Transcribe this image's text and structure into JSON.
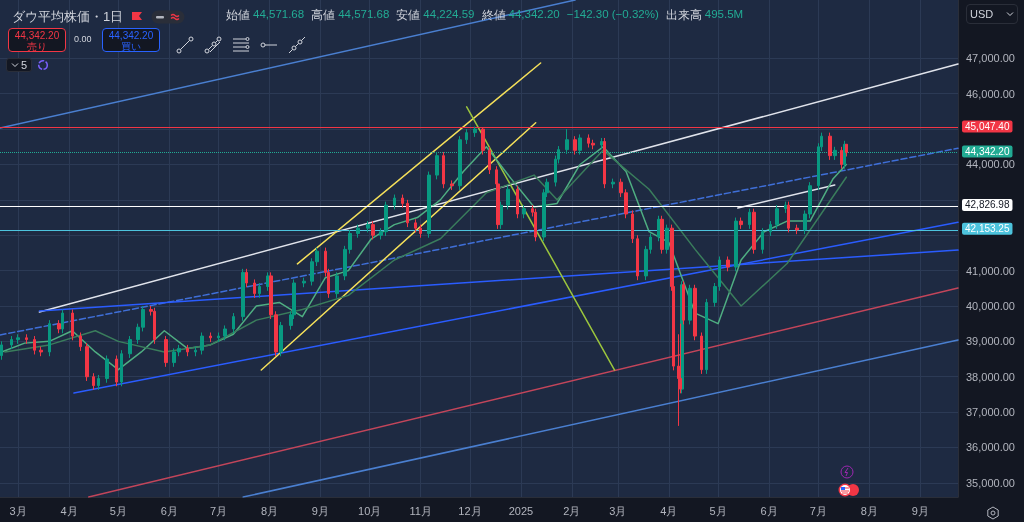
{
  "chart_data": {
    "type": "candlestick",
    "title": "ダウ平均株価・1日",
    "annotations": [
      "始値",
      "44,571.68",
      "高値",
      "44,571.68",
      "安値",
      "44,224.59",
      "終値",
      "44,342.20",
      "−142.30 (−0.32%)",
      "出来高",
      "495.5M",
      "44,342.20",
      "売り",
      "0.00",
      "44,342.20",
      "買い",
      "5",
      "USD"
    ],
    "xlim": [
      "2024-02-19",
      "2025-09-24"
    ],
    "xticks": [
      {
        "value": "2024-03-01",
        "label": "3月"
      },
      {
        "value": "2024-04-01",
        "label": "4月"
      },
      {
        "value": "2024-05-01",
        "label": "5月"
      },
      {
        "value": "2024-06-01",
        "label": "6月"
      },
      {
        "value": "2024-07-01",
        "label": "7月"
      },
      {
        "value": "2024-08-01",
        "label": "8月"
      },
      {
        "value": "2024-09-01",
        "label": "9月"
      },
      {
        "value": "2024-10-01",
        "label": "10月"
      },
      {
        "value": "2024-11-01",
        "label": "11月"
      },
      {
        "value": "2024-12-01",
        "label": "12月"
      },
      {
        "value": "2025-01-01",
        "label": "2025"
      },
      {
        "value": "2025-02-01",
        "label": "2月"
      },
      {
        "value": "2025-03-01",
        "label": "3月"
      },
      {
        "value": "2025-04-01",
        "label": "4月"
      },
      {
        "value": "2025-05-01",
        "label": "5月"
      },
      {
        "value": "2025-06-01",
        "label": "6月"
      },
      {
        "value": "2025-07-01",
        "label": "7月"
      },
      {
        "value": "2025-08-01",
        "label": "8月"
      },
      {
        "value": "2025-09-01",
        "label": "9月"
      }
    ],
    "ylim": [
      34600,
      48650
    ],
    "yticks": [
      {
        "value": 35000,
        "label": "35,000.00"
      },
      {
        "value": 36000,
        "label": "36,000.00"
      },
      {
        "value": 37000,
        "label": "37,000.00"
      },
      {
        "value": 38000,
        "label": "38,000.00"
      },
      {
        "value": 39000,
        "label": "39,000.00"
      },
      {
        "value": 40000,
        "label": "40,000.00"
      },
      {
        "value": 41000,
        "label": "41,000.00"
      },
      {
        "value": 42000,
        "label": null
      },
      {
        "value": 43000,
        "label": null
      },
      {
        "value": 44000,
        "label": "44,000.00"
      },
      {
        "value": 45000,
        "label": null
      },
      {
        "value": 46000,
        "label": "46,000.00"
      },
      {
        "value": 47000,
        "label": "47,000.00"
      }
    ],
    "grid": true,
    "ref_lines": [
      {
        "axis": "y",
        "value": 45047.4,
        "label": "45,047.40",
        "color": "#f23645",
        "line_style": "solid"
      },
      {
        "axis": "y",
        "value": 44342.2,
        "label": "44,342.20",
        "color": "#22ab94",
        "line_style": "dotted"
      },
      {
        "axis": "y",
        "value": 42826.98,
        "label": "42,826.98",
        "color": "#ffffff",
        "line_style": "solid"
      },
      {
        "axis": "y",
        "value": 42153.25,
        "label": "42,153.25",
        "color": "#4dc3dd",
        "line_style": "solid"
      }
    ],
    "series": [
      {
        "type": "line",
        "color": "#4a7fd0",
        "line_style": "solid",
        "x": [
          "2024-02-19",
          "2025-02-03"
        ],
        "values": [
          45030,
          48650
        ]
      },
      {
        "type": "line",
        "color": "#4a7fd0",
        "line_style": "solid",
        "x": [
          "2024-07-16",
          "2025-09-24"
        ],
        "values": [
          34600,
          39040
        ]
      },
      {
        "type": "line",
        "color": "#c2455a",
        "line_style": "solid",
        "x": [
          "2024-04-13",
          "2025-09-24"
        ],
        "values": [
          34600,
          40510
        ]
      },
      {
        "type": "line",
        "color": "#e0e3eb",
        "line_style": "solid",
        "x": [
          "2024-03-14",
          "2025-09-24"
        ],
        "values": [
          39830,
          46840
        ]
      },
      {
        "type": "line",
        "color": "#3f6fd8",
        "line_style": "dashed",
        "x": [
          "2024-02-19",
          "2025-09-24"
        ],
        "values": [
          39180,
          44460
        ]
      },
      {
        "type": "line",
        "color": "#2a5cff",
        "line_style": "solid",
        "x": [
          "2024-04-04",
          "2025-09-24"
        ],
        "values": [
          37540,
          42370
        ]
      },
      {
        "type": "line",
        "color": "#2a5cff",
        "line_style": "solid",
        "x": [
          "2024-03-14",
          "2025-09-24"
        ],
        "values": [
          39860,
          41580
        ]
      },
      {
        "type": "line",
        "color": "#f5e05a",
        "line_style": "solid",
        "x": [
          "2024-08-18",
          "2025-01-13"
        ],
        "values": [
          41190,
          46870
        ]
      },
      {
        "type": "line",
        "color": "#f5e05a",
        "line_style": "solid",
        "x": [
          "2024-07-27",
          "2025-01-10"
        ],
        "values": [
          38190,
          45180
        ]
      },
      {
        "type": "line",
        "color": "#9bc53d",
        "line_style": "solid",
        "x": [
          "2024-11-29",
          "2025-02-27"
        ],
        "values": [
          45630,
          38190
        ]
      },
      {
        "type": "line",
        "color": "#e0e3eb",
        "line_style": "solid",
        "x": [
          "2025-05-13",
          "2025-07-11"
        ],
        "values": [
          42770,
          43420
        ]
      },
      {
        "type": "line",
        "color": "#4fae82",
        "line_style": "solid",
        "x": [
          "2024-02-20",
          "2024-03-05",
          "2024-03-20",
          "2024-04-03",
          "2024-04-17",
          "2024-05-01",
          "2024-05-15",
          "2024-05-29",
          "2024-06-12",
          "2024-06-26",
          "2024-07-10",
          "2024-07-24",
          "2024-08-07",
          "2024-08-21",
          "2024-09-04",
          "2024-09-18",
          "2024-10-02",
          "2024-10-16",
          "2024-10-30",
          "2024-11-13",
          "2024-11-27",
          "2024-12-11",
          "2024-12-26",
          "2025-01-09",
          "2025-01-23",
          "2025-02-06",
          "2025-02-20",
          "2025-03-06",
          "2025-03-20",
          "2025-04-01",
          "2025-04-17",
          "2025-05-01",
          "2025-05-15",
          "2025-05-29",
          "2025-06-12",
          "2025-06-26",
          "2025-07-10",
          "2025-07-18"
        ],
        "values": [
          38700,
          38950,
          39000,
          39300,
          38700,
          38200,
          38700,
          39300,
          38800,
          38900,
          39200,
          40000,
          40100,
          39700,
          40800,
          41000,
          41900,
          42300,
          42500,
          43000,
          43800,
          44500,
          43600,
          42800,
          42900,
          44000,
          44500,
          43800,
          42100,
          41800,
          39800,
          39500,
          41300,
          42100,
          42400,
          42400,
          43600,
          44000
        ]
      },
      {
        "type": "line",
        "color": "#3a7d5c",
        "line_style": "solid",
        "x": [
          "2024-02-22",
          "2024-03-20",
          "2024-04-17",
          "2024-05-01",
          "2024-05-29",
          "2024-06-26",
          "2024-07-24",
          "2024-08-21",
          "2024-09-18",
          "2024-10-16",
          "2024-11-13",
          "2024-12-11",
          "2025-01-09",
          "2025-01-23",
          "2025-02-20",
          "2025-03-20",
          "2025-04-17",
          "2025-05-15",
          "2025-06-12",
          "2025-07-18"
        ],
        "values": [
          38700,
          38900,
          39300,
          39000,
          38700,
          38900,
          39600,
          39900,
          40300,
          41300,
          41900,
          43200,
          43700,
          43000,
          44400,
          43300,
          41600,
          40000,
          41200,
          43640
        ]
      },
      {
        "color": "#089981",
        "x": [
          "2024-02-20",
          "2024-02-26",
          "2024-03-01",
          "2024-03-20",
          "2024-03-28",
          "2024-04-19",
          "2024-04-24",
          "2024-05-03",
          "2024-05-08",
          "2024-05-13",
          "2024-05-16",
          "2024-06-04",
          "2024-06-07",
          "2024-06-17",
          "2024-06-21",
          "2024-07-01",
          "2024-07-05",
          "2024-07-10",
          "2024-07-16",
          "2024-07-26",
          "2024-07-31",
          "2024-08-08",
          "2024-08-14",
          "2024-08-16",
          "2024-08-22",
          "2024-08-27",
          "2024-08-30",
          "2024-09-11",
          "2024-09-16",
          "2024-09-19",
          "2024-09-24",
          "2024-09-30",
          "2024-10-08",
          "2024-10-11",
          "2024-10-16",
          "2024-11-06",
          "2024-11-11",
          "2024-11-25",
          "2024-11-29",
          "2024-12-04",
          "2024-12-20",
          "2024-12-24",
          "2025-01-03",
          "2025-01-15",
          "2025-01-17",
          "2025-01-22",
          "2025-01-24",
          "2025-01-29",
          "2025-02-06",
          "2025-02-19",
          "2025-02-26",
          "2025-03-18",
          "2025-03-21",
          "2025-03-26",
          "2025-03-31",
          "2025-04-09",
          "2025-04-14",
          "2025-04-24",
          "2025-04-29",
          "2025-05-02",
          "2025-05-12",
          "2025-05-20",
          "2025-05-28",
          "2025-06-02",
          "2025-06-06",
          "2025-06-11",
          "2025-06-23",
          "2025-06-26",
          "2025-07-01",
          "2025-07-03",
          "2025-07-11",
          "2025-07-17"
        ],
        "ohlc": [
          [
            38600,
            39000,
            38480,
            38900
          ],
          [
            38900,
            39150,
            38780,
            39050
          ],
          [
            39050,
            39200,
            38930,
            39100
          ],
          [
            38700,
            39600,
            38580,
            39500
          ],
          [
            39350,
            39900,
            39230,
            39800
          ],
          [
            37750,
            38050,
            37630,
            37950
          ],
          [
            37950,
            38600,
            37830,
            38500
          ],
          [
            37850,
            38750,
            37730,
            38650
          ],
          [
            38650,
            39150,
            38530,
            39050
          ],
          [
            39050,
            39500,
            38930,
            39400
          ],
          [
            39400,
            40000,
            39280,
            39900
          ],
          [
            38400,
            38800,
            38280,
            38700
          ],
          [
            38700,
            38900,
            38580,
            38800
          ],
          [
            38700,
            38850,
            38580,
            38750
          ],
          [
            38750,
            39250,
            38630,
            39150
          ],
          [
            39100,
            39250,
            38980,
            39150
          ],
          [
            39150,
            39450,
            39030,
            39350
          ],
          [
            39350,
            39800,
            39230,
            39700
          ],
          [
            39700,
            41050,
            39580,
            40950
          ],
          [
            40350,
            40650,
            40230,
            40550
          ],
          [
            40550,
            40950,
            40430,
            40850
          ],
          [
            38700,
            39550,
            38580,
            39450
          ],
          [
            39450,
            39850,
            39330,
            39750
          ],
          [
            39750,
            40750,
            39630,
            40650
          ],
          [
            40650,
            40800,
            40530,
            40700
          ],
          [
            40700,
            41350,
            40580,
            41250
          ],
          [
            41250,
            41650,
            41130,
            41550
          ],
          [
            40350,
            40950,
            40230,
            40850
          ],
          [
            40850,
            41700,
            40730,
            41600
          ],
          [
            41600,
            42150,
            41480,
            42050
          ],
          [
            42050,
            42300,
            41930,
            42200
          ],
          [
            42200,
            42400,
            42080,
            42300
          ],
          [
            42000,
            42200,
            41880,
            42100
          ],
          [
            42100,
            42950,
            41980,
            42850
          ],
          [
            42850,
            43150,
            42730,
            43050
          ],
          [
            42050,
            43800,
            41930,
            43700
          ],
          [
            43700,
            44350,
            43580,
            44250
          ],
          [
            43400,
            44800,
            43280,
            44700
          ],
          [
            44700,
            45000,
            44580,
            44900
          ],
          [
            44900,
            45070,
            44780,
            45000
          ],
          [
            42300,
            42950,
            42180,
            42850
          ],
          [
            42850,
            43400,
            42730,
            43300
          ],
          [
            42600,
            42850,
            42480,
            42750
          ],
          [
            41950,
            43300,
            41830,
            43200
          ],
          [
            43200,
            43600,
            43080,
            43500
          ],
          [
            43500,
            44250,
            43380,
            44150
          ],
          [
            44150,
            44520,
            44030,
            44420
          ],
          [
            44420,
            45000,
            44300,
            44700
          ],
          [
            44400,
            44850,
            44280,
            44750
          ],
          [
            44550,
            44750,
            44430,
            44650
          ],
          [
            43450,
            43600,
            43330,
            43500
          ],
          [
            40850,
            41700,
            40730,
            41600
          ],
          [
            41600,
            42050,
            41480,
            41950
          ],
          [
            41950,
            42550,
            41830,
            42450
          ],
          [
            41600,
            42300,
            41480,
            42200
          ],
          [
            37650,
            40700,
            37530,
            40600
          ],
          [
            39600,
            40600,
            39480,
            40500
          ],
          [
            38200,
            40200,
            38080,
            40100
          ],
          [
            40100,
            40650,
            39980,
            40550
          ],
          [
            40550,
            41400,
            40430,
            41300
          ],
          [
            41100,
            42500,
            40980,
            42400
          ],
          [
            42300,
            42750,
            42180,
            42650
          ],
          [
            41600,
            42200,
            41480,
            42100
          ],
          [
            42100,
            42400,
            41980,
            42300
          ],
          [
            42300,
            42850,
            42180,
            42750
          ],
          [
            42750,
            42950,
            42630,
            42850
          ],
          [
            42150,
            42700,
            42030,
            42600
          ],
          [
            42600,
            43500,
            42480,
            43400
          ],
          [
            43400,
            44600,
            43280,
            44500
          ],
          [
            44500,
            44900,
            44380,
            44800
          ],
          [
            44250,
            44500,
            44130,
            44400
          ],
          [
            44000,
            44670,
            43880,
            44571.68
          ]
        ]
      },
      {
        "color": "#f23645",
        "x": [
          "2024-03-06",
          "2024-03-11",
          "2024-03-15",
          "2024-03-26",
          "2024-04-03",
          "2024-04-08",
          "2024-04-12",
          "2024-04-16",
          "2024-04-30",
          "2024-05-21",
          "2024-05-23",
          "2024-05-30",
          "2024-06-12",
          "2024-06-26",
          "2024-07-18",
          "2024-07-23",
          "2024-08-02",
          "2024-08-05",
          "2024-09-04",
          "2024-09-06",
          "2024-10-03",
          "2024-10-21",
          "2024-10-24",
          "2024-10-29",
          "2024-11-01",
          "2024-11-15",
          "2024-11-20",
          "2024-12-09",
          "2024-12-13",
          "2024-12-17",
          "2024-12-18",
          "2024-12-30",
          "2025-01-08",
          "2025-01-10",
          "2025-02-03",
          "2025-02-11",
          "2025-02-14",
          "2025-02-21",
          "2025-03-03",
          "2025-03-06",
          "2025-03-10",
          "2025-03-13",
          "2025-03-28",
          "2025-04-03",
          "2025-04-04",
          "2025-04-07",
          "2025-04-08",
          "2025-04-10",
          "2025-04-17",
          "2025-04-21",
          "2025-05-07",
          "2025-05-15",
          "2025-05-23",
          "2025-06-13",
          "2025-06-18",
          "2025-07-08",
          "2025-07-15",
          "2025-07-18"
        ],
        "ohlc": [
          [
            39100,
            39200,
            38930,
            39050
          ],
          [
            39050,
            39150,
            38630,
            38750
          ],
          [
            38750,
            38850,
            38580,
            38700
          ],
          [
            39500,
            39600,
            39230,
            39350
          ],
          [
            39800,
            39900,
            39030,
            39150
          ],
          [
            39150,
            39250,
            38730,
            38850
          ],
          [
            38850,
            38950,
            37880,
            38000
          ],
          [
            38000,
            38100,
            37630,
            37750
          ],
          [
            38500,
            38600,
            37730,
            37850
          ],
          [
            39900,
            40000,
            39730,
            39850
          ],
          [
            39850,
            39950,
            38930,
            39050
          ],
          [
            39050,
            39150,
            38280,
            38400
          ],
          [
            38800,
            38900,
            38580,
            38700
          ],
          [
            39150,
            39250,
            38980,
            39100
          ],
          [
            40950,
            41050,
            40530,
            40650
          ],
          [
            40650,
            40750,
            40230,
            40350
          ],
          [
            40850,
            40950,
            39630,
            39750
          ],
          [
            39750,
            39850,
            38580,
            38700
          ],
          [
            41550,
            41650,
            40830,
            40950
          ],
          [
            40950,
            41050,
            40230,
            40350
          ],
          [
            42300,
            42400,
            41880,
            42000
          ],
          [
            43050,
            43150,
            42780,
            42900
          ],
          [
            42900,
            43000,
            42230,
            42350
          ],
          [
            42350,
            42450,
            42080,
            42200
          ],
          [
            42200,
            42300,
            41930,
            42050
          ],
          [
            44250,
            44350,
            43330,
            43450
          ],
          [
            43450,
            43550,
            43280,
            43400
          ],
          [
            45000,
            45050,
            44280,
            44400
          ],
          [
            44400,
            44500,
            43730,
            43850
          ],
          [
            43850,
            43950,
            43330,
            43450
          ],
          [
            43450,
            43550,
            42180,
            42300
          ],
          [
            43300,
            43400,
            42480,
            42600
          ],
          [
            42750,
            42850,
            42530,
            42650
          ],
          [
            42650,
            42750,
            41830,
            41950
          ],
          [
            44700,
            44800,
            44280,
            44400
          ],
          [
            44750,
            44850,
            44480,
            44600
          ],
          [
            44600,
            44700,
            44430,
            44550
          ],
          [
            44650,
            44750,
            43330,
            43450
          ],
          [
            43500,
            43600,
            43080,
            43200
          ],
          [
            43200,
            43300,
            42480,
            42600
          ],
          [
            42600,
            42700,
            41780,
            41900
          ],
          [
            41900,
            42000,
            40730,
            40850
          ],
          [
            42450,
            42550,
            41480,
            41600
          ],
          [
            42200,
            42300,
            40430,
            40550
          ],
          [
            40550,
            40650,
            38180,
            38300
          ],
          [
            38300,
            39200,
            36610,
            37950
          ],
          [
            37950,
            39500,
            37530,
            37650
          ],
          [
            40600,
            40700,
            39480,
            39600
          ],
          [
            40500,
            40600,
            39030,
            39150
          ],
          [
            39150,
            39250,
            38080,
            38200
          ],
          [
            41300,
            41400,
            40980,
            41100
          ],
          [
            42400,
            42500,
            42180,
            42300
          ],
          [
            42650,
            42750,
            41480,
            41600
          ],
          [
            42850,
            42950,
            42080,
            42200
          ],
          [
            42200,
            42300,
            42030,
            42150
          ],
          [
            44800,
            44900,
            44130,
            44250
          ],
          [
            44400,
            44500,
            43880,
            44000
          ],
          [
            44571.68,
            44571.68,
            44224.59,
            44342.2
          ]
        ]
      }
    ]
  }
}
